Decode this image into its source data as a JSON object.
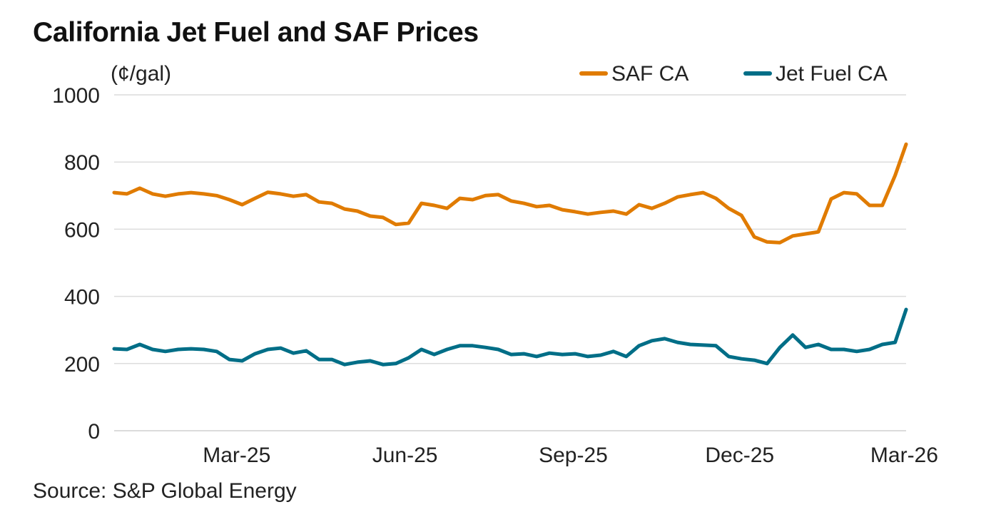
{
  "chart_data": {
    "type": "line",
    "title": "California Jet Fuel and SAF Prices",
    "ylabel": "(¢/gal)",
    "xlabel": "",
    "source": "Source: S&P Global Energy",
    "ylim": [
      0,
      1000
    ],
    "yticks": [
      0,
      200,
      400,
      600,
      800,
      1000
    ],
    "x_range": [
      "2024-12-24",
      "2026-03-02"
    ],
    "xticks": [
      {
        "date": "2025-03-01",
        "label": "Mar-25"
      },
      {
        "date": "2025-06-01",
        "label": "Jun-25"
      },
      {
        "date": "2025-09-01",
        "label": "Sep-25"
      },
      {
        "date": "2025-12-01",
        "label": "Dec-25"
      },
      {
        "date": "2026-03-01",
        "label": "Mar-26"
      }
    ],
    "grid": "horizontal",
    "legend_position": "top-right",
    "start_date": "2024-12-24",
    "interval_days": 7,
    "series": [
      {
        "name": "SAF CA",
        "color": "#E07B00",
        "values": [
          709,
          705,
          722,
          705,
          698,
          705,
          709,
          705,
          700,
          688,
          673,
          692,
          710,
          705,
          698,
          703,
          681,
          677,
          660,
          654,
          639,
          635,
          614,
          618,
          677,
          671,
          662,
          692,
          688,
          700,
          703,
          684,
          677,
          667,
          671,
          658,
          652,
          645,
          650,
          654,
          645,
          673,
          662,
          677,
          696,
          703,
          709,
          692,
          662,
          641,
          577,
          562,
          560,
          580,
          586,
          592,
          690,
          709,
          705,
          671,
          671,
          760,
          853
        ]
      },
      {
        "name": "Jet Fuel CA",
        "color": "#006E87",
        "values": [
          244,
          242,
          257,
          242,
          236,
          242,
          244,
          242,
          236,
          212,
          208,
          229,
          242,
          246,
          231,
          238,
          212,
          212,
          197,
          204,
          208,
          197,
          200,
          217,
          242,
          227,
          242,
          253,
          253,
          248,
          242,
          227,
          229,
          221,
          231,
          227,
          229,
          221,
          225,
          236,
          221,
          253,
          268,
          274,
          263,
          257,
          255,
          253,
          221,
          214,
          210,
          200,
          248,
          285,
          248,
          257,
          242,
          242,
          236,
          242,
          257,
          263,
          361
        ]
      }
    ]
  }
}
